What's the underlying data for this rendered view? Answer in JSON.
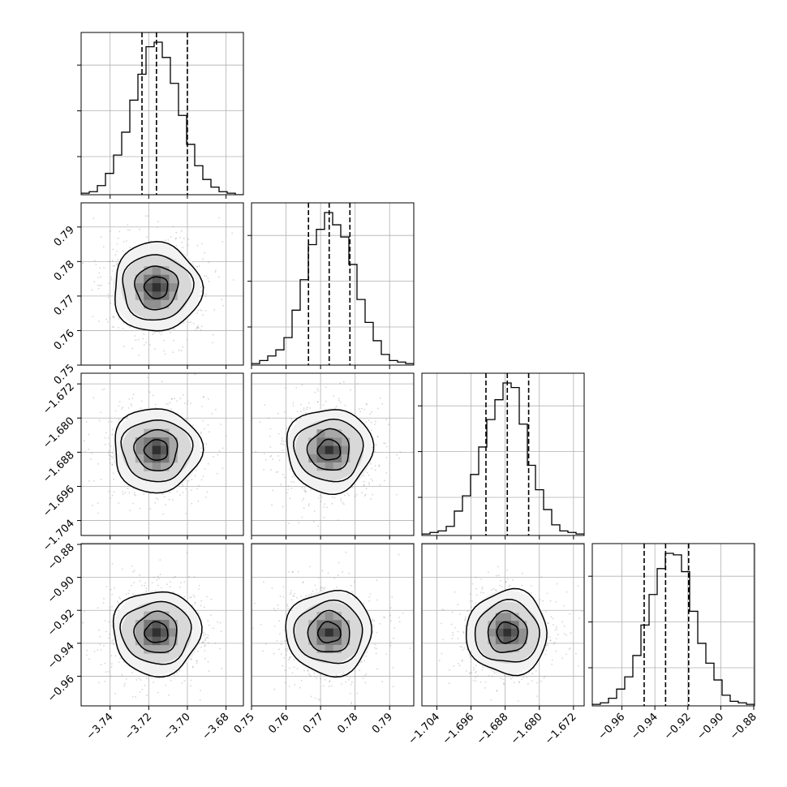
{
  "chart_data": {
    "type": "corner",
    "grid": true,
    "quantiles_shown": [
      0.16,
      0.5,
      0.84
    ],
    "contour_levels": 4,
    "parameters": [
      {
        "range": [
          -3.755,
          -3.671
        ],
        "ticks": [
          -3.74,
          -3.72,
          -3.7,
          -3.68
        ],
        "tick_labels": [
          "−3.74",
          "−3.72",
          "−3.70",
          "−3.68"
        ],
        "quantiles": [
          -3.7235,
          -3.716,
          -3.7
        ],
        "mean": -3.716,
        "std": 0.0115,
        "histogram": [
          0.01,
          0.02,
          0.06,
          0.14,
          0.26,
          0.41,
          0.62,
          0.79,
          0.97,
          1.0,
          0.9,
          0.73,
          0.52,
          0.33,
          0.19,
          0.1,
          0.05,
          0.02,
          0.01,
          0.0
        ]
      },
      {
        "range": [
          0.75,
          0.797
        ],
        "ticks": [
          0.75,
          0.76,
          0.77,
          0.78,
          0.79
        ],
        "tick_labels": [
          "0.75",
          "0.76",
          "0.77",
          "0.78",
          "0.79"
        ],
        "quantiles": [
          0.7665,
          0.7725,
          0.7785
        ],
        "mean": 0.7725,
        "std": 0.0063,
        "histogram": [
          0.01,
          0.03,
          0.06,
          0.1,
          0.18,
          0.36,
          0.56,
          0.79,
          0.89,
          1.0,
          0.92,
          0.84,
          0.66,
          0.43,
          0.28,
          0.16,
          0.07,
          0.03,
          0.02,
          0.01
        ]
      },
      {
        "range": [
          -1.7075,
          -1.6695
        ],
        "ticks": [
          -1.704,
          -1.696,
          -1.688,
          -1.68,
          -1.672
        ],
        "tick_labels": [
          "−1.704",
          "−1.696",
          "−1.688",
          "−1.680",
          "−1.672"
        ],
        "quantiles": [
          -1.6925,
          -1.6875,
          -1.6825
        ],
        "mean": -1.6875,
        "std": 0.0048,
        "histogram": [
          0.01,
          0.02,
          0.03,
          0.06,
          0.16,
          0.26,
          0.4,
          0.58,
          0.76,
          0.89,
          1.0,
          0.97,
          0.73,
          0.46,
          0.3,
          0.17,
          0.07,
          0.03,
          0.02,
          0.01
        ]
      },
      {
        "range": [
          -0.978,
          -0.8795
        ],
        "ticks": [
          -0.96,
          -0.94,
          -0.92,
          -0.9,
          -0.88
        ],
        "tick_labels": [
          "−0.96",
          "−0.94",
          "−0.92",
          "−0.90",
          "−0.88"
        ],
        "quantiles": [
          -0.9465,
          -0.9335,
          -0.9195
        ],
        "mean": -0.9335,
        "std": 0.0125,
        "histogram": [
          0.01,
          0.02,
          0.05,
          0.11,
          0.19,
          0.33,
          0.53,
          0.73,
          0.9,
          1.0,
          0.99,
          0.88,
          0.62,
          0.41,
          0.28,
          0.17,
          0.07,
          0.03,
          0.02,
          0.01
        ]
      }
    ],
    "density_peaks": [
      {
        "row": 1,
        "col": 0,
        "x": -3.7155,
        "y": 0.7725
      },
      {
        "row": 2,
        "col": 0,
        "x": -3.7155,
        "y": -1.6875
      },
      {
        "row": 2,
        "col": 1,
        "x": 0.7725,
        "y": -1.6875
      },
      {
        "row": 3,
        "col": 0,
        "x": -3.7155,
        "y": -0.9335
      },
      {
        "row": 3,
        "col": 1,
        "x": 0.7725,
        "y": -0.9335
      },
      {
        "row": 3,
        "col": 2,
        "x": -1.6875,
        "y": -0.9335
      }
    ]
  }
}
